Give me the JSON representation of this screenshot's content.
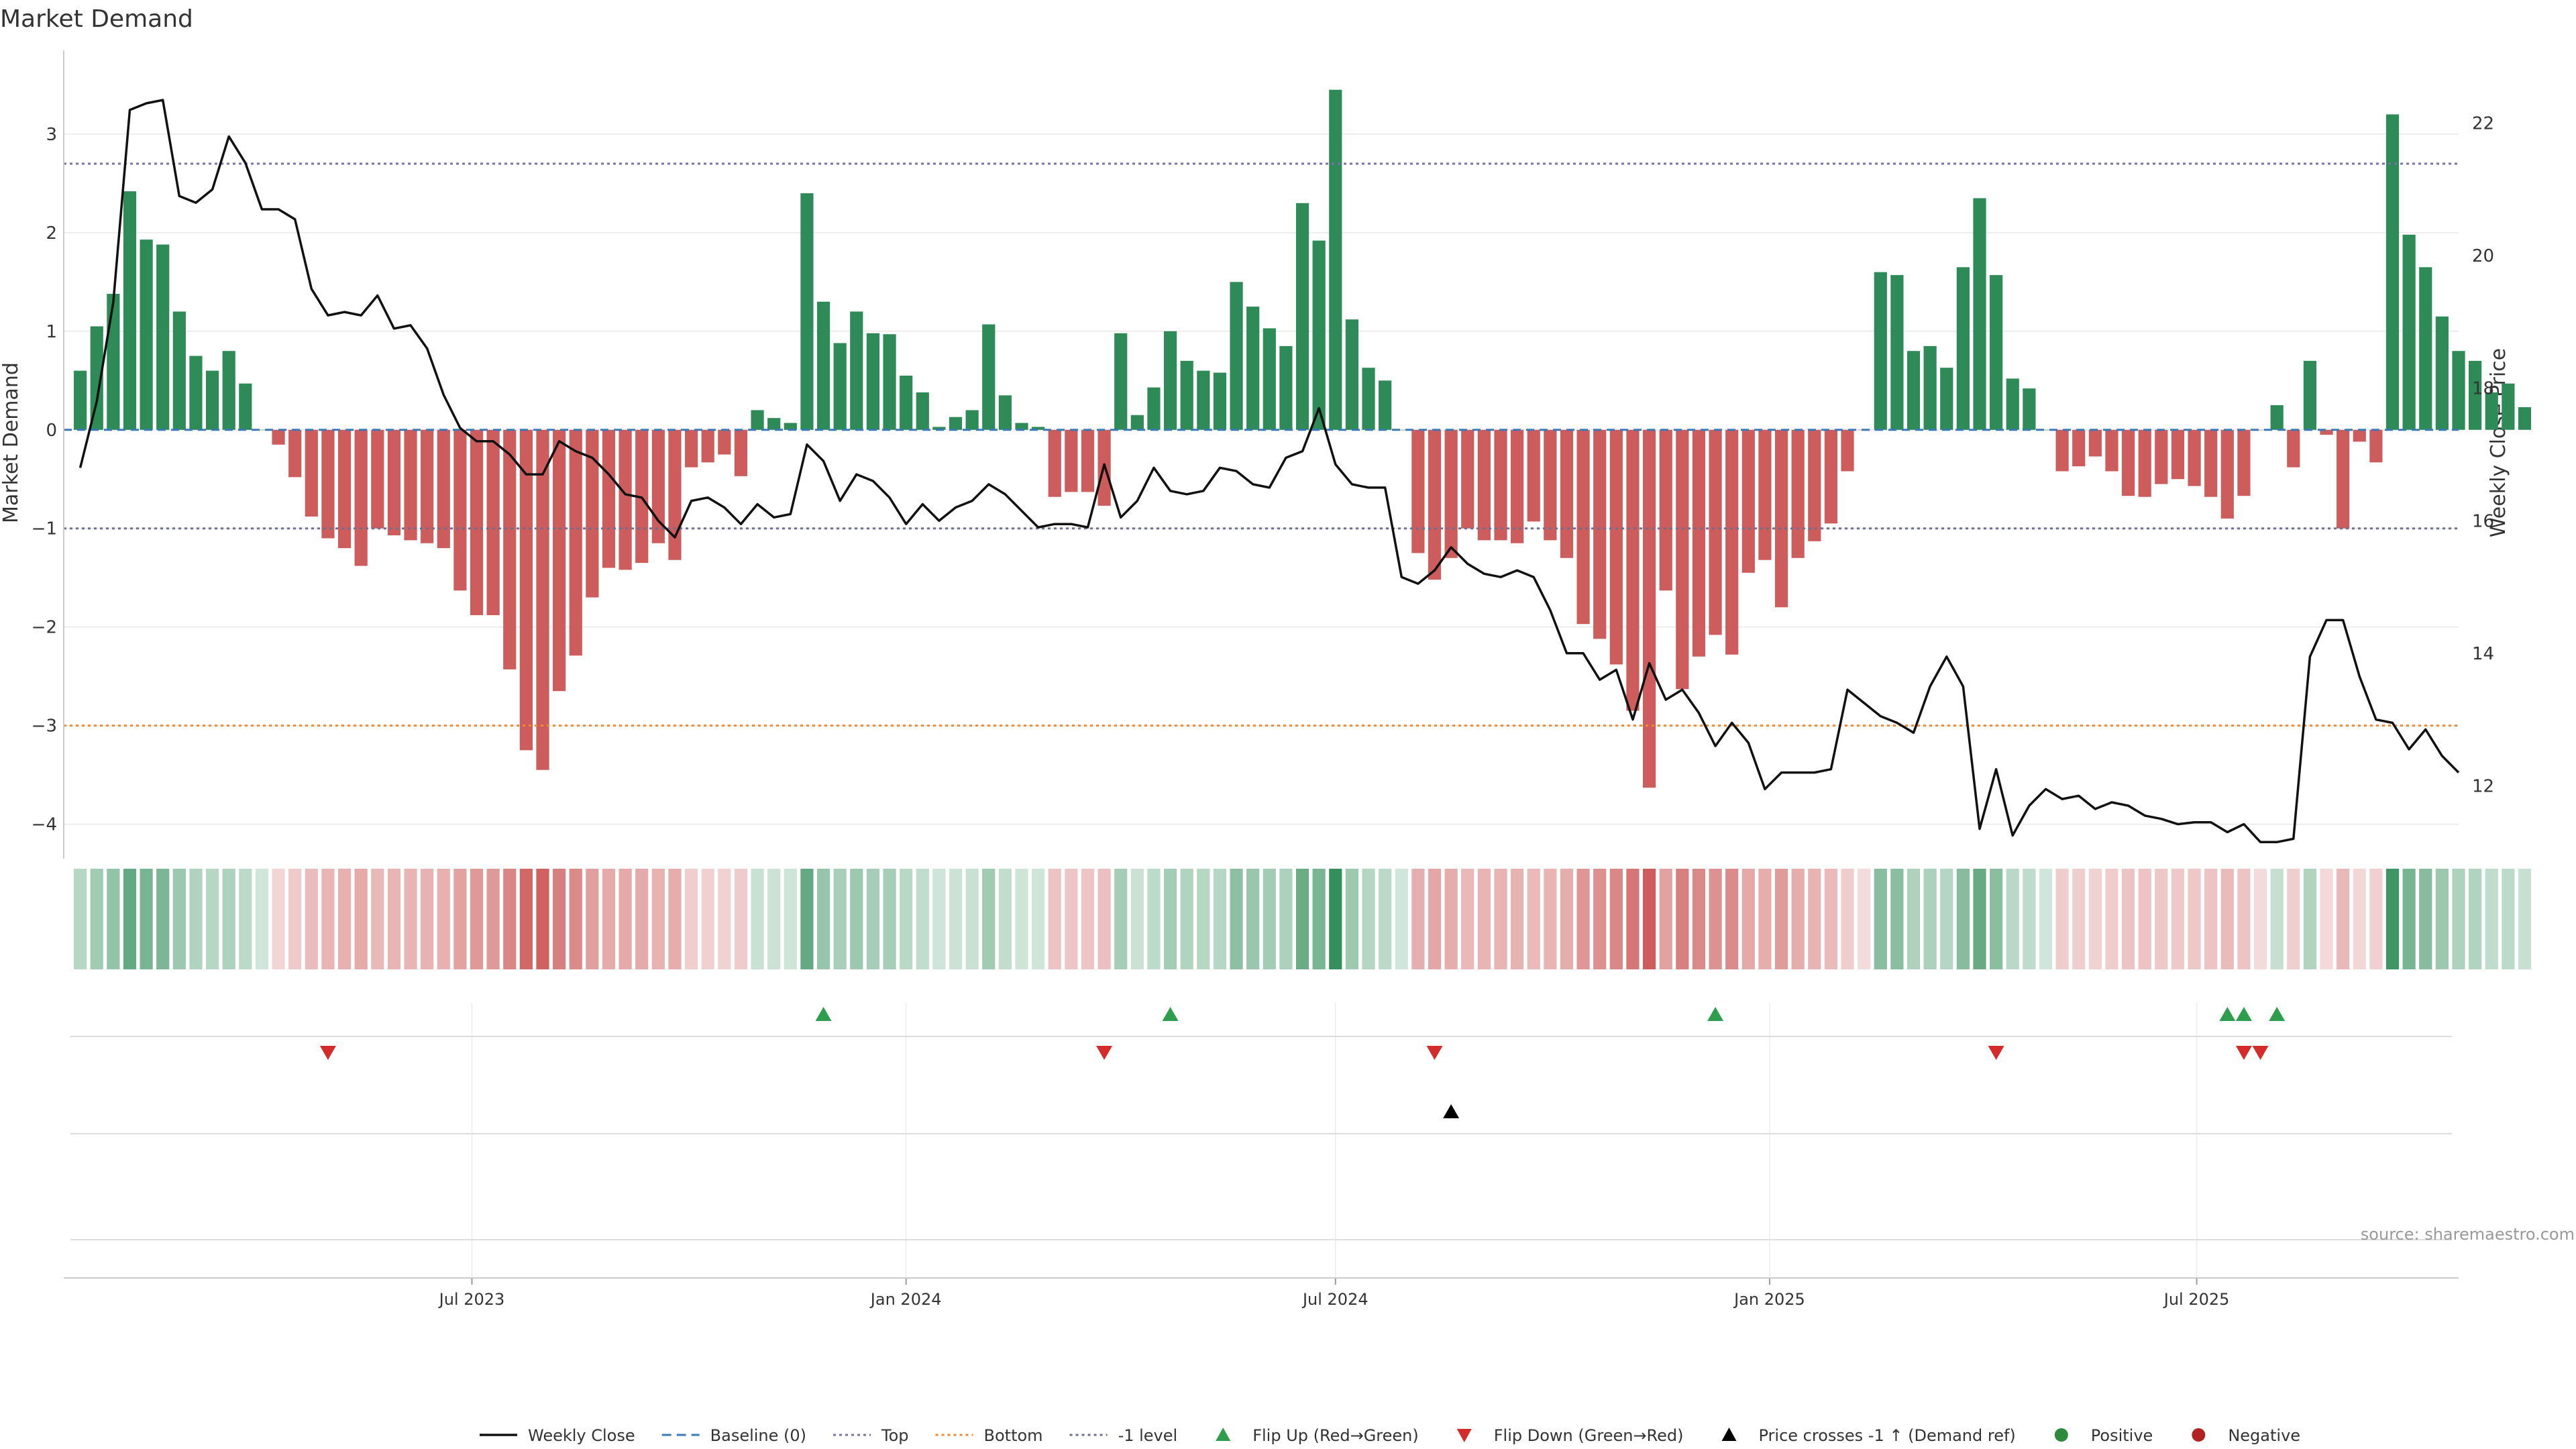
{
  "chart_data": {
    "type": "bar",
    "title": "Market Demand",
    "ylabel": "Market Demand",
    "y2label": "Weekly Close Price",
    "ylim": [
      -4.35,
      3.85
    ],
    "y2lim": [
      10.9,
      23.1
    ],
    "yticks": [
      -4,
      -3,
      -2,
      -1,
      0,
      1,
      2,
      3
    ],
    "y2ticks": [
      12,
      14,
      16,
      18,
      20,
      22
    ],
    "xrange": [
      "2023-01-09",
      "2025-10-20"
    ],
    "xticks": [
      {
        "date": "2023-07-01",
        "label": "Jul 2023"
      },
      {
        "date": "2024-01-01",
        "label": "Jan 2024"
      },
      {
        "date": "2024-07-01",
        "label": "Jul 2024"
      },
      {
        "date": "2025-01-01",
        "label": "Jan 2025"
      },
      {
        "date": "2025-07-01",
        "label": "Jul 2025"
      }
    ],
    "grid": true,
    "reference_lines": [
      {
        "name": "Top",
        "value": 2.7,
        "color": "#7b6fa8"
      },
      {
        "name": "Bottom",
        "value": -3.0,
        "color": "#ef8a2e"
      },
      {
        "name": "-1 level",
        "value": -1.0,
        "color": "#6f6f8f"
      },
      {
        "name": "Baseline (0)",
        "value": 0,
        "color": "#3a7ab8"
      }
    ],
    "start_date": "2023-01-16",
    "interval_days": 7,
    "demand": [
      0.6,
      1.05,
      1.38,
      2.42,
      1.93,
      1.88,
      1.2,
      0.75,
      0.6,
      0.8,
      0.47,
      0,
      -0.15,
      -0.48,
      -0.88,
      -1.1,
      -1.2,
      -1.38,
      -1.0,
      -1.07,
      -1.12,
      -1.15,
      -1.2,
      -1.63,
      -1.88,
      -1.88,
      -2.43,
      -3.25,
      -3.45,
      -2.65,
      -2.29,
      -1.7,
      -1.4,
      -1.42,
      -1.35,
      -1.15,
      -1.32,
      -0.38,
      -0.33,
      -0.25,
      -0.47,
      0.2,
      0.12,
      0.07,
      2.4,
      1.3,
      0.88,
      1.2,
      0.98,
      0.97,
      0.55,
      0.38,
      0.03,
      0.13,
      0.2,
      1.07,
      0.35,
      0.07,
      0.03,
      -0.68,
      -0.63,
      -0.63,
      -0.77,
      0.98,
      0.15,
      0.43,
      1.0,
      0.7,
      0.6,
      0.58,
      1.5,
      1.25,
      1.03,
      0.85,
      2.3,
      1.92,
      3.45,
      1.12,
      0.63,
      0.5,
      0,
      -1.25,
      -1.52,
      -1.3,
      -1.0,
      -1.12,
      -1.12,
      -1.15,
      -0.93,
      -1.12,
      -1.3,
      -1.97,
      -2.12,
      -2.38,
      -2.85,
      -3.63,
      -1.63,
      -2.63,
      -2.3,
      -2.08,
      -2.28,
      -1.45,
      -1.32,
      -1.8,
      -1.3,
      -1.13,
      -0.95,
      -0.42,
      0,
      1.6,
      1.57,
      0.8,
      0.85,
      0.63,
      1.65,
      2.35,
      1.57,
      0.52,
      0.42,
      0,
      -0.42,
      -0.37,
      -0.27,
      -0.42,
      -0.67,
      -0.68,
      -0.55,
      -0.5,
      -0.57,
      -0.68,
      -0.9,
      -0.67,
      0,
      0.25,
      -0.38,
      0.7,
      -0.05,
      -1.0,
      -0.12,
      -0.33,
      3.2,
      1.98,
      1.65,
      1.15,
      0.8,
      0.7,
      0.38,
      0.47,
      0.23
    ],
    "close": [
      16.8,
      17.8,
      19.3,
      22.2,
      22.3,
      22.35,
      20.9,
      20.8,
      21.0,
      21.8,
      21.4,
      20.7,
      20.7,
      20.55,
      19.5,
      19.1,
      19.15,
      19.1,
      19.4,
      18.9,
      18.95,
      18.6,
      17.9,
      17.4,
      17.2,
      17.2,
      17.0,
      16.7,
      16.7,
      17.2,
      17.05,
      16.95,
      16.7,
      16.4,
      16.35,
      16.0,
      15.75,
      16.3,
      16.35,
      16.2,
      15.95,
      16.25,
      16.05,
      16.1,
      17.15,
      16.9,
      16.3,
      16.7,
      16.6,
      16.35,
      15.95,
      16.25,
      16.0,
      16.2,
      16.3,
      16.55,
      16.4,
      16.15,
      15.9,
      15.95,
      15.95,
      15.9,
      16.85,
      16.05,
      16.3,
      16.8,
      16.45,
      16.4,
      16.45,
      16.8,
      16.75,
      16.55,
      16.5,
      16.95,
      17.05,
      17.7,
      16.85,
      16.55,
      16.5,
      16.5,
      15.15,
      15.05,
      15.25,
      15.6,
      15.35,
      15.2,
      15.15,
      15.25,
      15.15,
      14.65,
      14.0,
      14.0,
      13.6,
      13.75,
      13.0,
      13.85,
      13.3,
      13.45,
      13.1,
      12.6,
      12.95,
      12.65,
      11.95,
      12.2,
      12.2,
      12.2,
      12.25,
      13.45,
      13.25,
      13.05,
      12.95,
      12.8,
      13.5,
      13.95,
      13.5,
      11.35,
      12.25,
      11.25,
      11.7,
      11.95,
      11.8,
      11.85,
      11.65,
      11.75,
      11.7,
      11.55,
      11.5,
      11.42,
      11.45,
      11.45,
      11.3,
      11.42,
      11.15,
      11.15,
      11.2,
      13.95,
      14.5,
      14.5,
      13.65,
      13.0,
      12.95,
      12.55,
      12.85,
      12.45,
      12.2
    ],
    "flip_up_dates": [
      "2023-11-27",
      "2024-04-22",
      "2024-12-09",
      "2025-07-14",
      "2025-07-21",
      "2025-08-04"
    ],
    "flip_down_dates": [
      "2023-05-01",
      "2024-03-25",
      "2024-08-12",
      "2025-04-07",
      "2025-07-21",
      "2025-07-28"
    ],
    "price_cross_dates": [
      "2024-08-19"
    ],
    "legend": [
      {
        "label": "Weekly Close",
        "kind": "line",
        "color": "#111111"
      },
      {
        "label": "Baseline (0)",
        "kind": "dash",
        "color": "#3a7ab8"
      },
      {
        "label": "Top",
        "kind": "dot",
        "color": "#7b6fa8"
      },
      {
        "label": "Bottom",
        "kind": "dot",
        "color": "#ef8a2e"
      },
      {
        "label": "-1 level",
        "kind": "dot",
        "color": "#6f6f8f"
      },
      {
        "label": "Flip Up (Red→Green)",
        "kind": "tri-up",
        "color": "#2e9e4e"
      },
      {
        "label": "Flip Down (Green→Red)",
        "kind": "tri-down",
        "color": "#d42b2b"
      },
      {
        "label": "Price crosses -1 ↑ (Demand ref)",
        "kind": "tri-up",
        "color": "#000000"
      },
      {
        "label": "Positive",
        "kind": "circle",
        "color": "#2e8b3e"
      },
      {
        "label": "Negative",
        "kind": "circle",
        "color": "#b22222"
      }
    ],
    "legend_position": "bottom",
    "source": "source: sharemaestro.com"
  },
  "colors": {
    "positive": "#2e8b57",
    "negative": "#cd5c5c",
    "grid": "#e8e8e8",
    "axis": "#cccccc"
  }
}
